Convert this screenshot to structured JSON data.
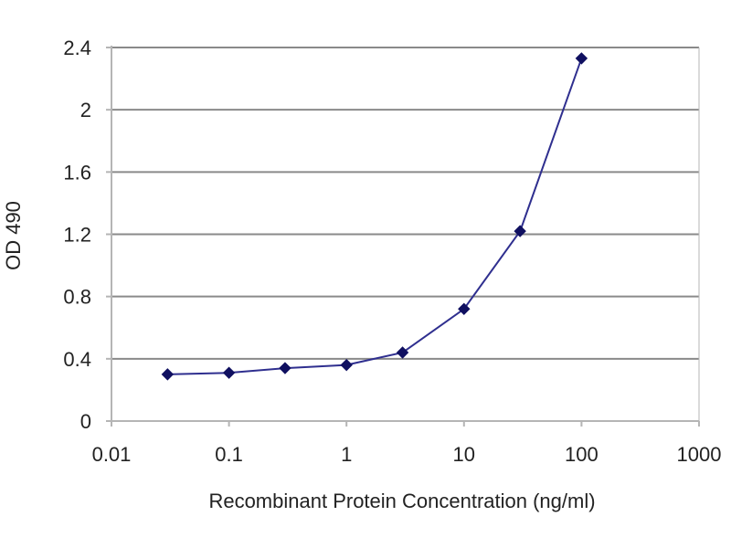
{
  "colors": {
    "background": "#ffffff",
    "plot_background": "#ffffff",
    "gridline": "#8a8a8a",
    "axis": "#b5b5b5",
    "series": "#2f2f8f",
    "marker": "#101060",
    "text": "#222222"
  },
  "chart_data": {
    "type": "line",
    "title": "",
    "xlabel": "Recombinant Protein Concentration (ng/ml)",
    "ylabel": "OD 490",
    "x_scale": "log",
    "xlim": [
      0.01,
      1000
    ],
    "ylim": [
      0,
      2.4
    ],
    "x_ticks": [
      0.01,
      0.1,
      1,
      10,
      100,
      1000
    ],
    "x_tick_labels": [
      "0.01",
      "0.1",
      "1",
      "10",
      "100",
      "1000"
    ],
    "y_ticks": [
      0,
      0.4,
      0.8,
      1.2,
      1.6,
      2,
      2.4
    ],
    "y_tick_labels": [
      "0",
      "0.4",
      "0.8",
      "1.2",
      "1.6",
      "2",
      "2.4"
    ],
    "grid": "horizontal",
    "legend": "none",
    "marker": "diamond",
    "x": [
      0.03,
      0.1,
      0.3,
      1,
      3,
      10,
      30,
      100
    ],
    "y": [
      0.3,
      0.31,
      0.34,
      0.36,
      0.44,
      0.72,
      1.22,
      2.33
    ]
  }
}
